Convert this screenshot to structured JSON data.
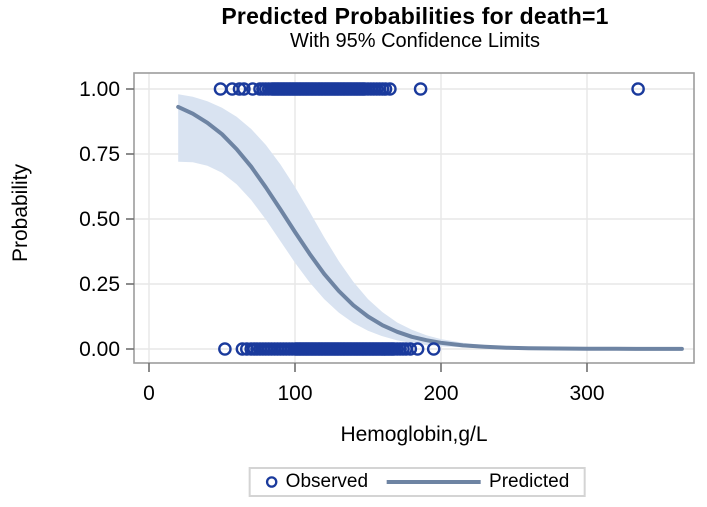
{
  "title": "Predicted Probabilities for death=1",
  "subtitle": "With 95% Confidence Limits",
  "legend": {
    "items": [
      {
        "label": "Observed",
        "marker": "open-circle"
      },
      {
        "label": "Predicted",
        "marker": "line"
      }
    ]
  },
  "colors": {
    "observed": "#1a3a9c",
    "predicted": "#6e84a3",
    "band": "#d9e3f1",
    "grid": "#e7e7e7",
    "frame": "#9d9d9d",
    "tick": "#6f6f6f",
    "text": "#000000",
    "background": "#ffffff"
  },
  "chart_data": {
    "type": "scatter+line+band",
    "title": "Predicted Probabilities for death=1",
    "subtitle": "With 95% Confidence Limits",
    "xlabel": "Hemoglobin,g/L",
    "ylabel": "Probability",
    "x_ticks": [
      0,
      100,
      200,
      300
    ],
    "y_ticks": [
      {
        "label": "0.00",
        "value": 0
      },
      {
        "label": "0.25",
        "value": 0.25
      },
      {
        "label": "0.50",
        "value": 0.5
      },
      {
        "label": "0.75",
        "value": 0.75
      },
      {
        "label": "1.00",
        "value": 1
      }
    ],
    "xlim": [
      -10,
      373
    ],
    "ylim": [
      -0.054,
      1.062
    ],
    "grid": true,
    "legend_position": "bottom-center",
    "series": {
      "observed_y1_x": [
        49,
        57,
        62,
        65,
        71,
        76,
        78,
        80,
        82,
        84,
        85,
        86,
        87,
        88,
        89,
        90,
        91,
        92,
        93,
        94,
        95,
        96,
        97,
        98,
        99,
        100,
        101,
        102,
        103,
        104,
        105,
        106,
        107,
        108,
        109,
        110,
        111,
        112,
        113,
        114,
        115,
        116,
        117,
        118,
        119,
        120,
        121,
        122,
        123,
        124,
        125,
        126,
        127,
        128,
        129,
        130,
        131,
        132,
        133,
        134,
        135,
        136,
        137,
        138,
        139,
        140,
        141,
        142,
        143,
        144,
        145,
        146,
        147,
        148,
        150,
        152,
        154,
        156,
        158,
        160,
        162,
        165,
        186,
        335
      ],
      "observed_y0_x": [
        52,
        64,
        67,
        70,
        72,
        74,
        76,
        78,
        80,
        82,
        84,
        86,
        88,
        90,
        92,
        94,
        96,
        98,
        100,
        101,
        102,
        103,
        104,
        105,
        106,
        107,
        108,
        109,
        110,
        111,
        112,
        113,
        114,
        115,
        116,
        117,
        118,
        119,
        120,
        121,
        122,
        123,
        124,
        125,
        126,
        127,
        128,
        129,
        130,
        131,
        132,
        133,
        134,
        135,
        136,
        137,
        138,
        139,
        140,
        141,
        142,
        143,
        144,
        145,
        146,
        147,
        148,
        149,
        150,
        151,
        152,
        153,
        154,
        155,
        156,
        157,
        158,
        159,
        160,
        161,
        162,
        163,
        164,
        165,
        166,
        167,
        168,
        170,
        172,
        174,
        176,
        179,
        184,
        195
      ],
      "predicted": [
        [
          20,
          0.931
        ],
        [
          30,
          0.905
        ],
        [
          40,
          0.87
        ],
        [
          50,
          0.826
        ],
        [
          60,
          0.769
        ],
        [
          70,
          0.701
        ],
        [
          80,
          0.622
        ],
        [
          90,
          0.537
        ],
        [
          100,
          0.45
        ],
        [
          110,
          0.366
        ],
        [
          120,
          0.289
        ],
        [
          130,
          0.223
        ],
        [
          140,
          0.168
        ],
        [
          150,
          0.125
        ],
        [
          160,
          0.091
        ],
        [
          170,
          0.066
        ],
        [
          180,
          0.047
        ],
        [
          190,
          0.034
        ],
        [
          200,
          0.024
        ],
        [
          215,
          0.014
        ],
        [
          230,
          0.009
        ],
        [
          245,
          0.005
        ],
        [
          260,
          0.003
        ],
        [
          280,
          0.002
        ],
        [
          300,
          0.001
        ],
        [
          320,
          0.001
        ],
        [
          340,
          0.0005
        ],
        [
          365,
          0.0005
        ]
      ],
      "ci_upper": [
        [
          20,
          0.98
        ],
        [
          30,
          0.97
        ],
        [
          40,
          0.953
        ],
        [
          50,
          0.928
        ],
        [
          60,
          0.893
        ],
        [
          70,
          0.846
        ],
        [
          80,
          0.785
        ],
        [
          90,
          0.71
        ],
        [
          100,
          0.623
        ],
        [
          110,
          0.528
        ],
        [
          120,
          0.43
        ],
        [
          130,
          0.338
        ],
        [
          140,
          0.258
        ],
        [
          150,
          0.192
        ],
        [
          160,
          0.141
        ],
        [
          170,
          0.102
        ],
        [
          180,
          0.074
        ],
        [
          190,
          0.053
        ],
        [
          200,
          0.038
        ],
        [
          215,
          0.024
        ],
        [
          230,
          0.015
        ],
        [
          245,
          0.01
        ],
        [
          260,
          0.006
        ],
        [
          280,
          0.004
        ],
        [
          300,
          0.002
        ],
        [
          320,
          0.001
        ],
        [
          340,
          0.001
        ],
        [
          365,
          0.001
        ]
      ],
      "ci_lower": [
        [
          20,
          0.72
        ],
        [
          30,
          0.718
        ],
        [
          40,
          0.705
        ],
        [
          50,
          0.678
        ],
        [
          60,
          0.634
        ],
        [
          70,
          0.573
        ],
        [
          80,
          0.498
        ],
        [
          90,
          0.415
        ],
        [
          100,
          0.332
        ],
        [
          110,
          0.256
        ],
        [
          120,
          0.192
        ],
        [
          130,
          0.14
        ],
        [
          140,
          0.1
        ],
        [
          150,
          0.07
        ],
        [
          160,
          0.049
        ],
        [
          170,
          0.033
        ],
        [
          180,
          0.023
        ],
        [
          190,
          0.015
        ],
        [
          200,
          0.01
        ],
        [
          215,
          0.006
        ],
        [
          230,
          0.004
        ],
        [
          245,
          0.002
        ],
        [
          260,
          0.001
        ],
        [
          280,
          0.001
        ],
        [
          300,
          0.0005
        ],
        [
          320,
          0.0003
        ],
        [
          340,
          0.0002
        ],
        [
          365,
          0.0001
        ]
      ]
    }
  }
}
